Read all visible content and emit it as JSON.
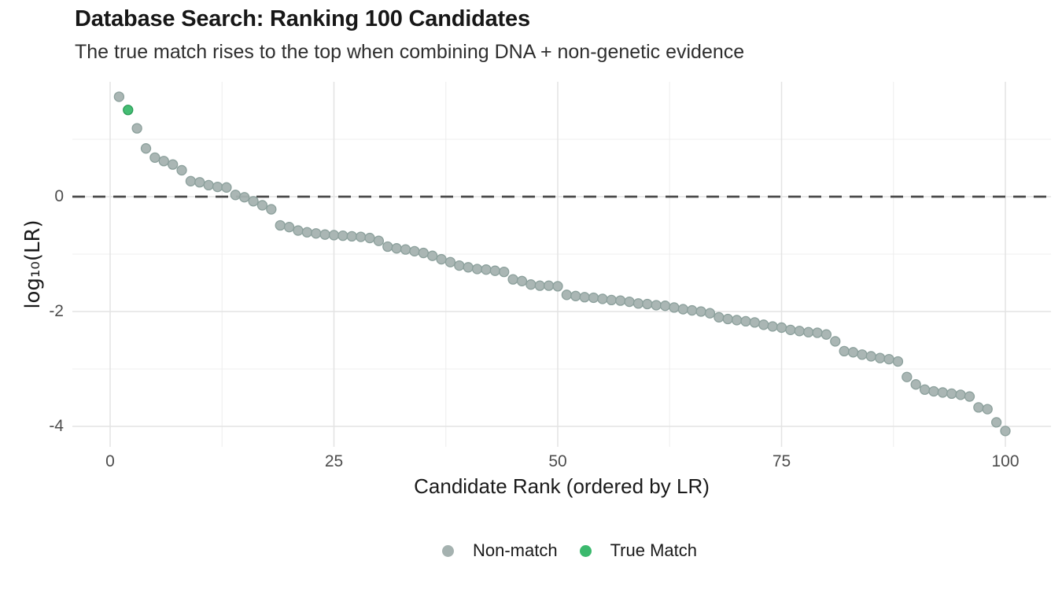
{
  "chart_data": {
    "type": "scatter",
    "title": "Database Search: Ranking 100 Candidates",
    "subtitle": "The true match rises to the top when combining DNA + non-genetic evidence",
    "xlabel": "Candidate Rank (ordered by LR)",
    "ylabel": "log₁₀(LR)",
    "xlim": [
      -4.2,
      105.1
    ],
    "ylim": [
      -4.36,
      2.0
    ],
    "x_ticks": [
      0,
      25,
      50,
      75,
      100
    ],
    "x_tick_labels": [
      "0",
      "25",
      "50",
      "75",
      "100"
    ],
    "y_ticks": [
      0,
      -2,
      -4
    ],
    "y_tick_labels": [
      "0",
      "-2",
      "-4"
    ],
    "x_minor_ticks": [
      12.5,
      37.5,
      62.5,
      87.5
    ],
    "y_minor_ticks": [
      1,
      -1,
      -3
    ],
    "grid": true,
    "legend_position": "bottom",
    "reference_line": {
      "y": 0,
      "style": "dashed",
      "color": "#4a4a4a"
    },
    "colors": {
      "non_match_fill": "#a5b2b0",
      "non_match_stroke": "#8ca09c",
      "true_match_fill": "#3bb96d",
      "true_match_stroke": "#2a9b56",
      "grid_major": "#e3e3e3",
      "grid_minor": "#efefef",
      "tick_label": "#4d4d4d"
    },
    "series": [
      {
        "name": "Non-match",
        "fill": "#a5b2b0",
        "stroke": "#8ca09c",
        "points": [
          [
            1,
            1.74
          ],
          [
            3,
            1.19
          ],
          [
            4,
            0.84
          ],
          [
            5,
            0.68
          ],
          [
            6,
            0.62
          ],
          [
            7,
            0.56
          ],
          [
            8,
            0.46
          ],
          [
            9,
            0.27
          ],
          [
            10,
            0.25
          ],
          [
            11,
            0.2
          ],
          [
            12,
            0.17
          ],
          [
            13,
            0.16
          ],
          [
            14,
            0.03
          ],
          [
            15,
            -0.01
          ],
          [
            16,
            -0.08
          ],
          [
            17,
            -0.15
          ],
          [
            18,
            -0.22
          ],
          [
            19,
            -0.5
          ],
          [
            20,
            -0.53
          ],
          [
            21,
            -0.59
          ],
          [
            22,
            -0.62
          ],
          [
            23,
            -0.64
          ],
          [
            24,
            -0.66
          ],
          [
            25,
            -0.67
          ],
          [
            26,
            -0.68
          ],
          [
            27,
            -0.69
          ],
          [
            28,
            -0.7
          ],
          [
            29,
            -0.72
          ],
          [
            30,
            -0.77
          ],
          [
            31,
            -0.87
          ],
          [
            32,
            -0.9
          ],
          [
            33,
            -0.92
          ],
          [
            34,
            -0.95
          ],
          [
            35,
            -0.98
          ],
          [
            36,
            -1.03
          ],
          [
            37,
            -1.09
          ],
          [
            38,
            -1.14
          ],
          [
            39,
            -1.2
          ],
          [
            40,
            -1.23
          ],
          [
            41,
            -1.26
          ],
          [
            42,
            -1.27
          ],
          [
            43,
            -1.29
          ],
          [
            44,
            -1.31
          ],
          [
            45,
            -1.44
          ],
          [
            46,
            -1.47
          ],
          [
            47,
            -1.53
          ],
          [
            48,
            -1.55
          ],
          [
            49,
            -1.55
          ],
          [
            50,
            -1.56
          ],
          [
            51,
            -1.71
          ],
          [
            52,
            -1.73
          ],
          [
            53,
            -1.75
          ],
          [
            54,
            -1.76
          ],
          [
            55,
            -1.78
          ],
          [
            56,
            -1.8
          ],
          [
            57,
            -1.81
          ],
          [
            58,
            -1.83
          ],
          [
            59,
            -1.86
          ],
          [
            60,
            -1.87
          ],
          [
            61,
            -1.89
          ],
          [
            62,
            -1.9
          ],
          [
            63,
            -1.93
          ],
          [
            64,
            -1.96
          ],
          [
            65,
            -1.98
          ],
          [
            66,
            -2.0
          ],
          [
            67,
            -2.03
          ],
          [
            68,
            -2.1
          ],
          [
            69,
            -2.13
          ],
          [
            70,
            -2.15
          ],
          [
            71,
            -2.17
          ],
          [
            72,
            -2.19
          ],
          [
            73,
            -2.23
          ],
          [
            74,
            -2.26
          ],
          [
            75,
            -2.28
          ],
          [
            76,
            -2.32
          ],
          [
            77,
            -2.34
          ],
          [
            78,
            -2.36
          ],
          [
            79,
            -2.37
          ],
          [
            80,
            -2.4
          ],
          [
            81,
            -2.52
          ],
          [
            82,
            -2.69
          ],
          [
            83,
            -2.71
          ],
          [
            84,
            -2.75
          ],
          [
            85,
            -2.78
          ],
          [
            86,
            -2.81
          ],
          [
            87,
            -2.83
          ],
          [
            88,
            -2.87
          ],
          [
            89,
            -3.14
          ],
          [
            90,
            -3.27
          ],
          [
            91,
            -3.36
          ],
          [
            92,
            -3.39
          ],
          [
            93,
            -3.41
          ],
          [
            94,
            -3.43
          ],
          [
            95,
            -3.45
          ],
          [
            96,
            -3.48
          ],
          [
            97,
            -3.67
          ],
          [
            98,
            -3.7
          ],
          [
            99,
            -3.93
          ],
          [
            100,
            -4.08
          ]
        ]
      },
      {
        "name": "True Match",
        "fill": "#3bb96d",
        "stroke": "#2a9b56",
        "points": [
          [
            2,
            1.51
          ]
        ]
      }
    ]
  }
}
